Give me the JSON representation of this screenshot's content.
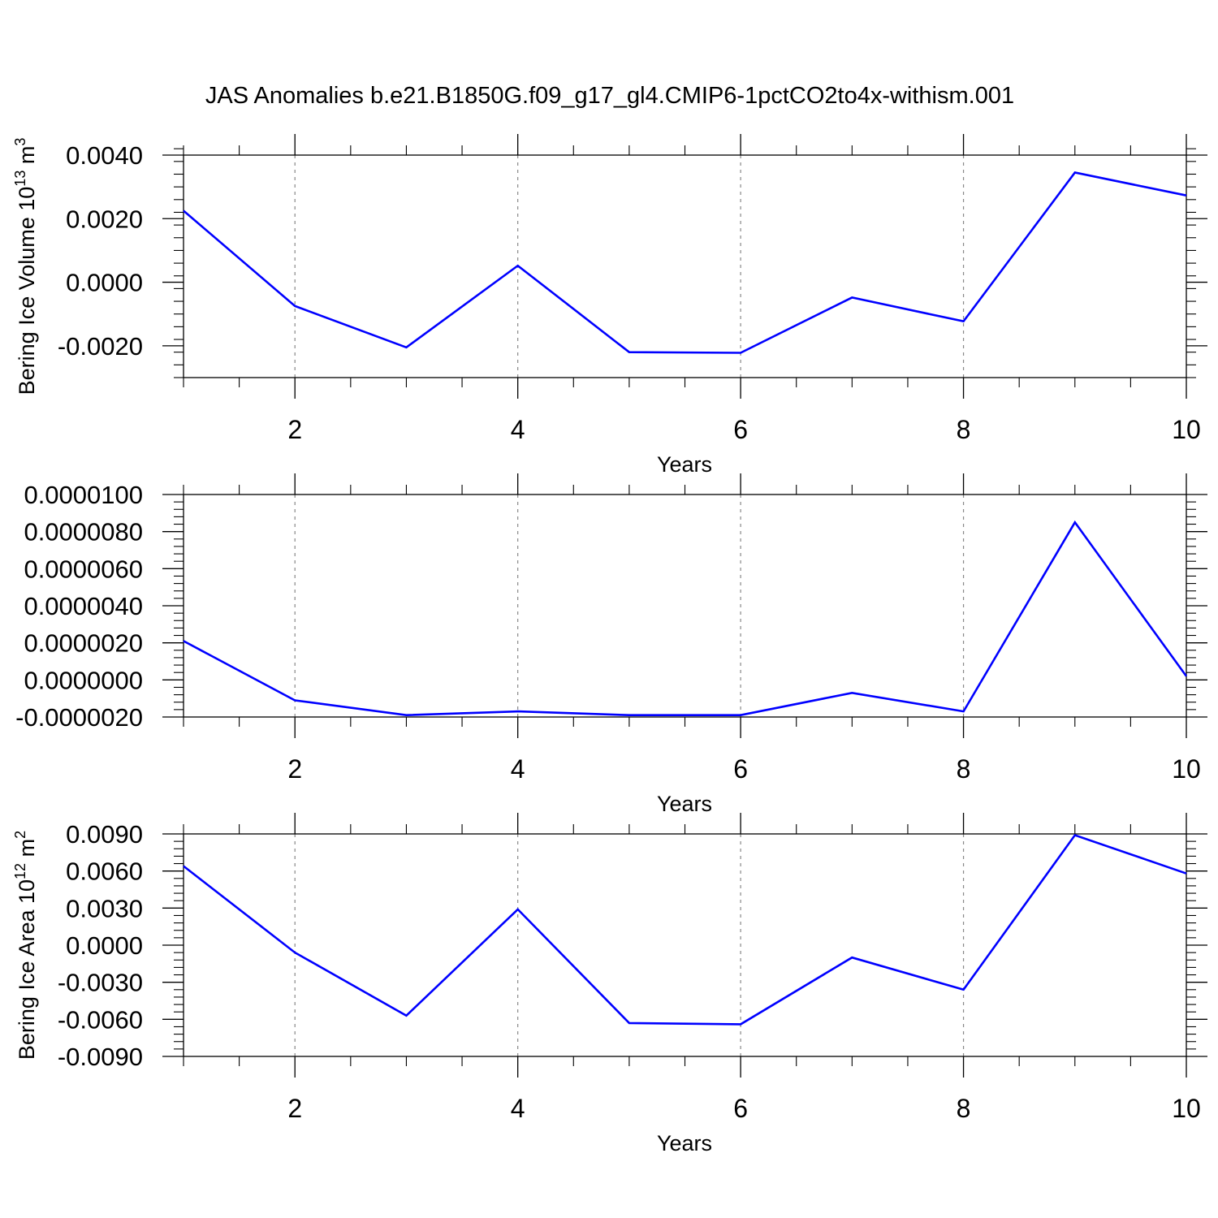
{
  "title": "JAS Anomalies b.e21.B1850G.f09_g17_gl4.CMIP6-1pctCO2to4x-withism.001",
  "colors": {
    "line": "#0000ff",
    "axis": "#000000",
    "grid": "#888888"
  },
  "chart_data": [
    {
      "type": "line",
      "ylabel": "Bering Ice Volume 10",
      "ylabel_unit": "m",
      "ylabel_exp": "13",
      "ylabel_unit_exp": "3",
      "xlabel": "Years",
      "xlim": [
        1,
        10
      ],
      "ylim": [
        -0.003,
        0.004
      ],
      "grid": "vertical-dashed",
      "xticks": [
        2,
        4,
        6,
        8,
        10
      ],
      "xtick_labels": [
        "2",
        "4",
        "6",
        "8",
        "10"
      ],
      "yticks": [
        0.004,
        0.002,
        0.0,
        -0.002
      ],
      "ytick_labels": [
        "0.0040",
        "0.0020",
        "0.0000",
        "-0.0020"
      ],
      "x": [
        1,
        2,
        3,
        4,
        5,
        6,
        7,
        8,
        9,
        10
      ],
      "values": [
        0.00225,
        -0.00075,
        -0.00205,
        0.00052,
        -0.0022,
        -0.00222,
        -0.00048,
        -0.00123,
        0.00345,
        0.00273
      ]
    },
    {
      "type": "line",
      "ylabel": "",
      "xlabel": "Years",
      "xlim": [
        1,
        10
      ],
      "ylim": [
        -2e-06,
        1e-05
      ],
      "grid": "vertical-dashed",
      "xticks": [
        2,
        4,
        6,
        8,
        10
      ],
      "xtick_labels": [
        "2",
        "4",
        "6",
        "8",
        "10"
      ],
      "yticks": [
        1e-05,
        8e-06,
        6e-06,
        4e-06,
        2e-06,
        0.0,
        -2e-06
      ],
      "ytick_labels": [
        "0.0000100",
        "0.0000080",
        "0.0000060",
        "0.0000040",
        "0.0000020",
        "0.0000000",
        "-0.0000020"
      ],
      "x": [
        1,
        2,
        3,
        4,
        5,
        6,
        7,
        8,
        9,
        10
      ],
      "values": [
        2.1e-06,
        -1.1e-06,
        -1.9e-06,
        -1.7e-06,
        -1.9e-06,
        -1.9e-06,
        -7e-07,
        -1.7e-06,
        8.5e-06,
        2e-07
      ]
    },
    {
      "type": "line",
      "ylabel": "Bering Ice Area 10",
      "ylabel_unit": "m",
      "ylabel_exp": "12",
      "ylabel_unit_exp": "2",
      "xlabel": "Years",
      "xlim": [
        1,
        10
      ],
      "ylim": [
        -0.009,
        0.009
      ],
      "grid": "vertical-dashed",
      "xticks": [
        2,
        4,
        6,
        8,
        10
      ],
      "xtick_labels": [
        "2",
        "4",
        "6",
        "8",
        "10"
      ],
      "yticks": [
        0.009,
        0.006,
        0.003,
        0.0,
        -0.003,
        -0.006,
        -0.009
      ],
      "ytick_labels": [
        "0.0090",
        "0.0060",
        "0.0030",
        "0.0000",
        "-0.0030",
        "-0.0060",
        "-0.0090"
      ],
      "x": [
        1,
        2,
        3,
        4,
        5,
        6,
        7,
        8,
        9,
        10
      ],
      "values": [
        0.0064,
        -0.0006,
        -0.0057,
        0.0029,
        -0.0063,
        -0.0064,
        -0.001,
        -0.0036,
        0.0089,
        0.0058
      ]
    }
  ]
}
